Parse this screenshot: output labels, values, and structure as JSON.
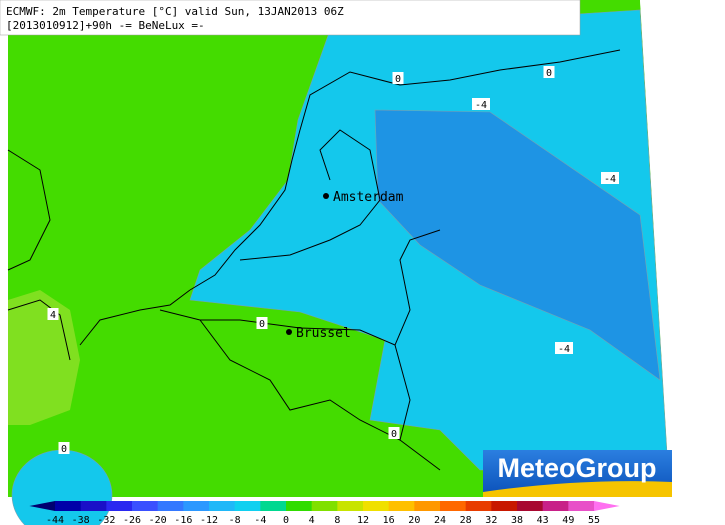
{
  "header": {
    "line1": "ECMWF: 2m Temperature [°C] valid Sun, 13JAN2013 06Z",
    "line2": "[2013010912]+90h -= BeNeLux =-"
  },
  "cities": [
    {
      "name": "Amsterdam"
    },
    {
      "name": "Brussel"
    }
  ],
  "contour_labels": [
    "0",
    "0",
    "0",
    "0",
    "0",
    "-4",
    "-4",
    "-4",
    "4"
  ],
  "logo": "MeteoGroup",
  "colorbar": {
    "labels": [
      "-44",
      "-38",
      "-32",
      "-26",
      "-20",
      "-16",
      "-12",
      "-8",
      "-4",
      "0",
      "4",
      "8",
      "12",
      "16",
      "20",
      "24",
      "28",
      "32",
      "38",
      "43",
      "49",
      "55"
    ],
    "colors": [
      "#000070",
      "#0000a8",
      "#1a10c8",
      "#2a28f0",
      "#3a50ff",
      "#3478ff",
      "#2c98ff",
      "#20b8f8",
      "#10d0f0",
      "#00d890",
      "#30dc00",
      "#80e000",
      "#c8e400",
      "#f0e000",
      "#ffc000",
      "#ff9800",
      "#ff6800",
      "#e83c00",
      "#c81800",
      "#a80830",
      "#c82088",
      "#e850c8",
      "#ff70f0"
    ]
  }
}
